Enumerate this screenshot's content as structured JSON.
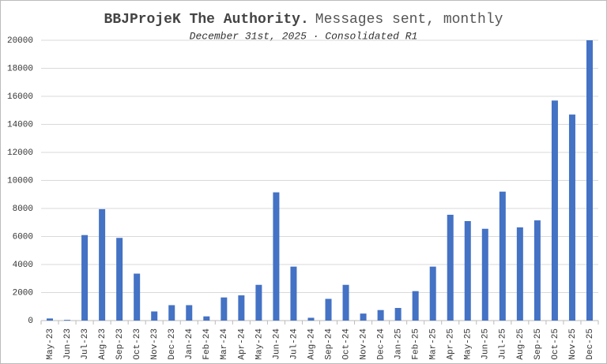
{
  "chart_data": {
    "type": "bar",
    "title_emphasis": "BBJProjeK The Authority.",
    "title": "Messages sent, monthly",
    "subtitle": "December 31st, 2025 · Consolidated R1",
    "categories": [
      "May-23",
      "Jun-23",
      "Jul-23",
      "Aug-23",
      "Sep-23",
      "Oct-23",
      "Nov-23",
      "Dec-23",
      "Jan-24",
      "Feb-24",
      "Mar-24",
      "Apr-24",
      "May-24",
      "Jun-24",
      "Jul-24",
      "Aug-24",
      "Sep-24",
      "Oct-24",
      "Nov-24",
      "Dec-24",
      "Jan-25",
      "Feb-25",
      "Mar-25",
      "Apr-25",
      "May-25",
      "Jun-25",
      "Jul-25",
      "Aug-25",
      "Sep-25",
      "Oct-25",
      "Nov-25",
      "Dec-25"
    ],
    "values": [
      150,
      50,
      6100,
      7950,
      5900,
      3350,
      650,
      1100,
      1100,
      300,
      1650,
      1800,
      2550,
      9150,
      3850,
      200,
      1550,
      2550,
      500,
      750,
      900,
      2100,
      3850,
      7550,
      7100,
      6550,
      9200,
      6650,
      7150,
      15700,
      14700,
      20000
    ],
    "color": "#4472c4",
    "ylim": [
      0,
      20000
    ],
    "yticks": [
      0,
      2000,
      4000,
      6000,
      8000,
      10000,
      12000,
      14000,
      16000,
      18000,
      20000
    ],
    "grid": true
  }
}
